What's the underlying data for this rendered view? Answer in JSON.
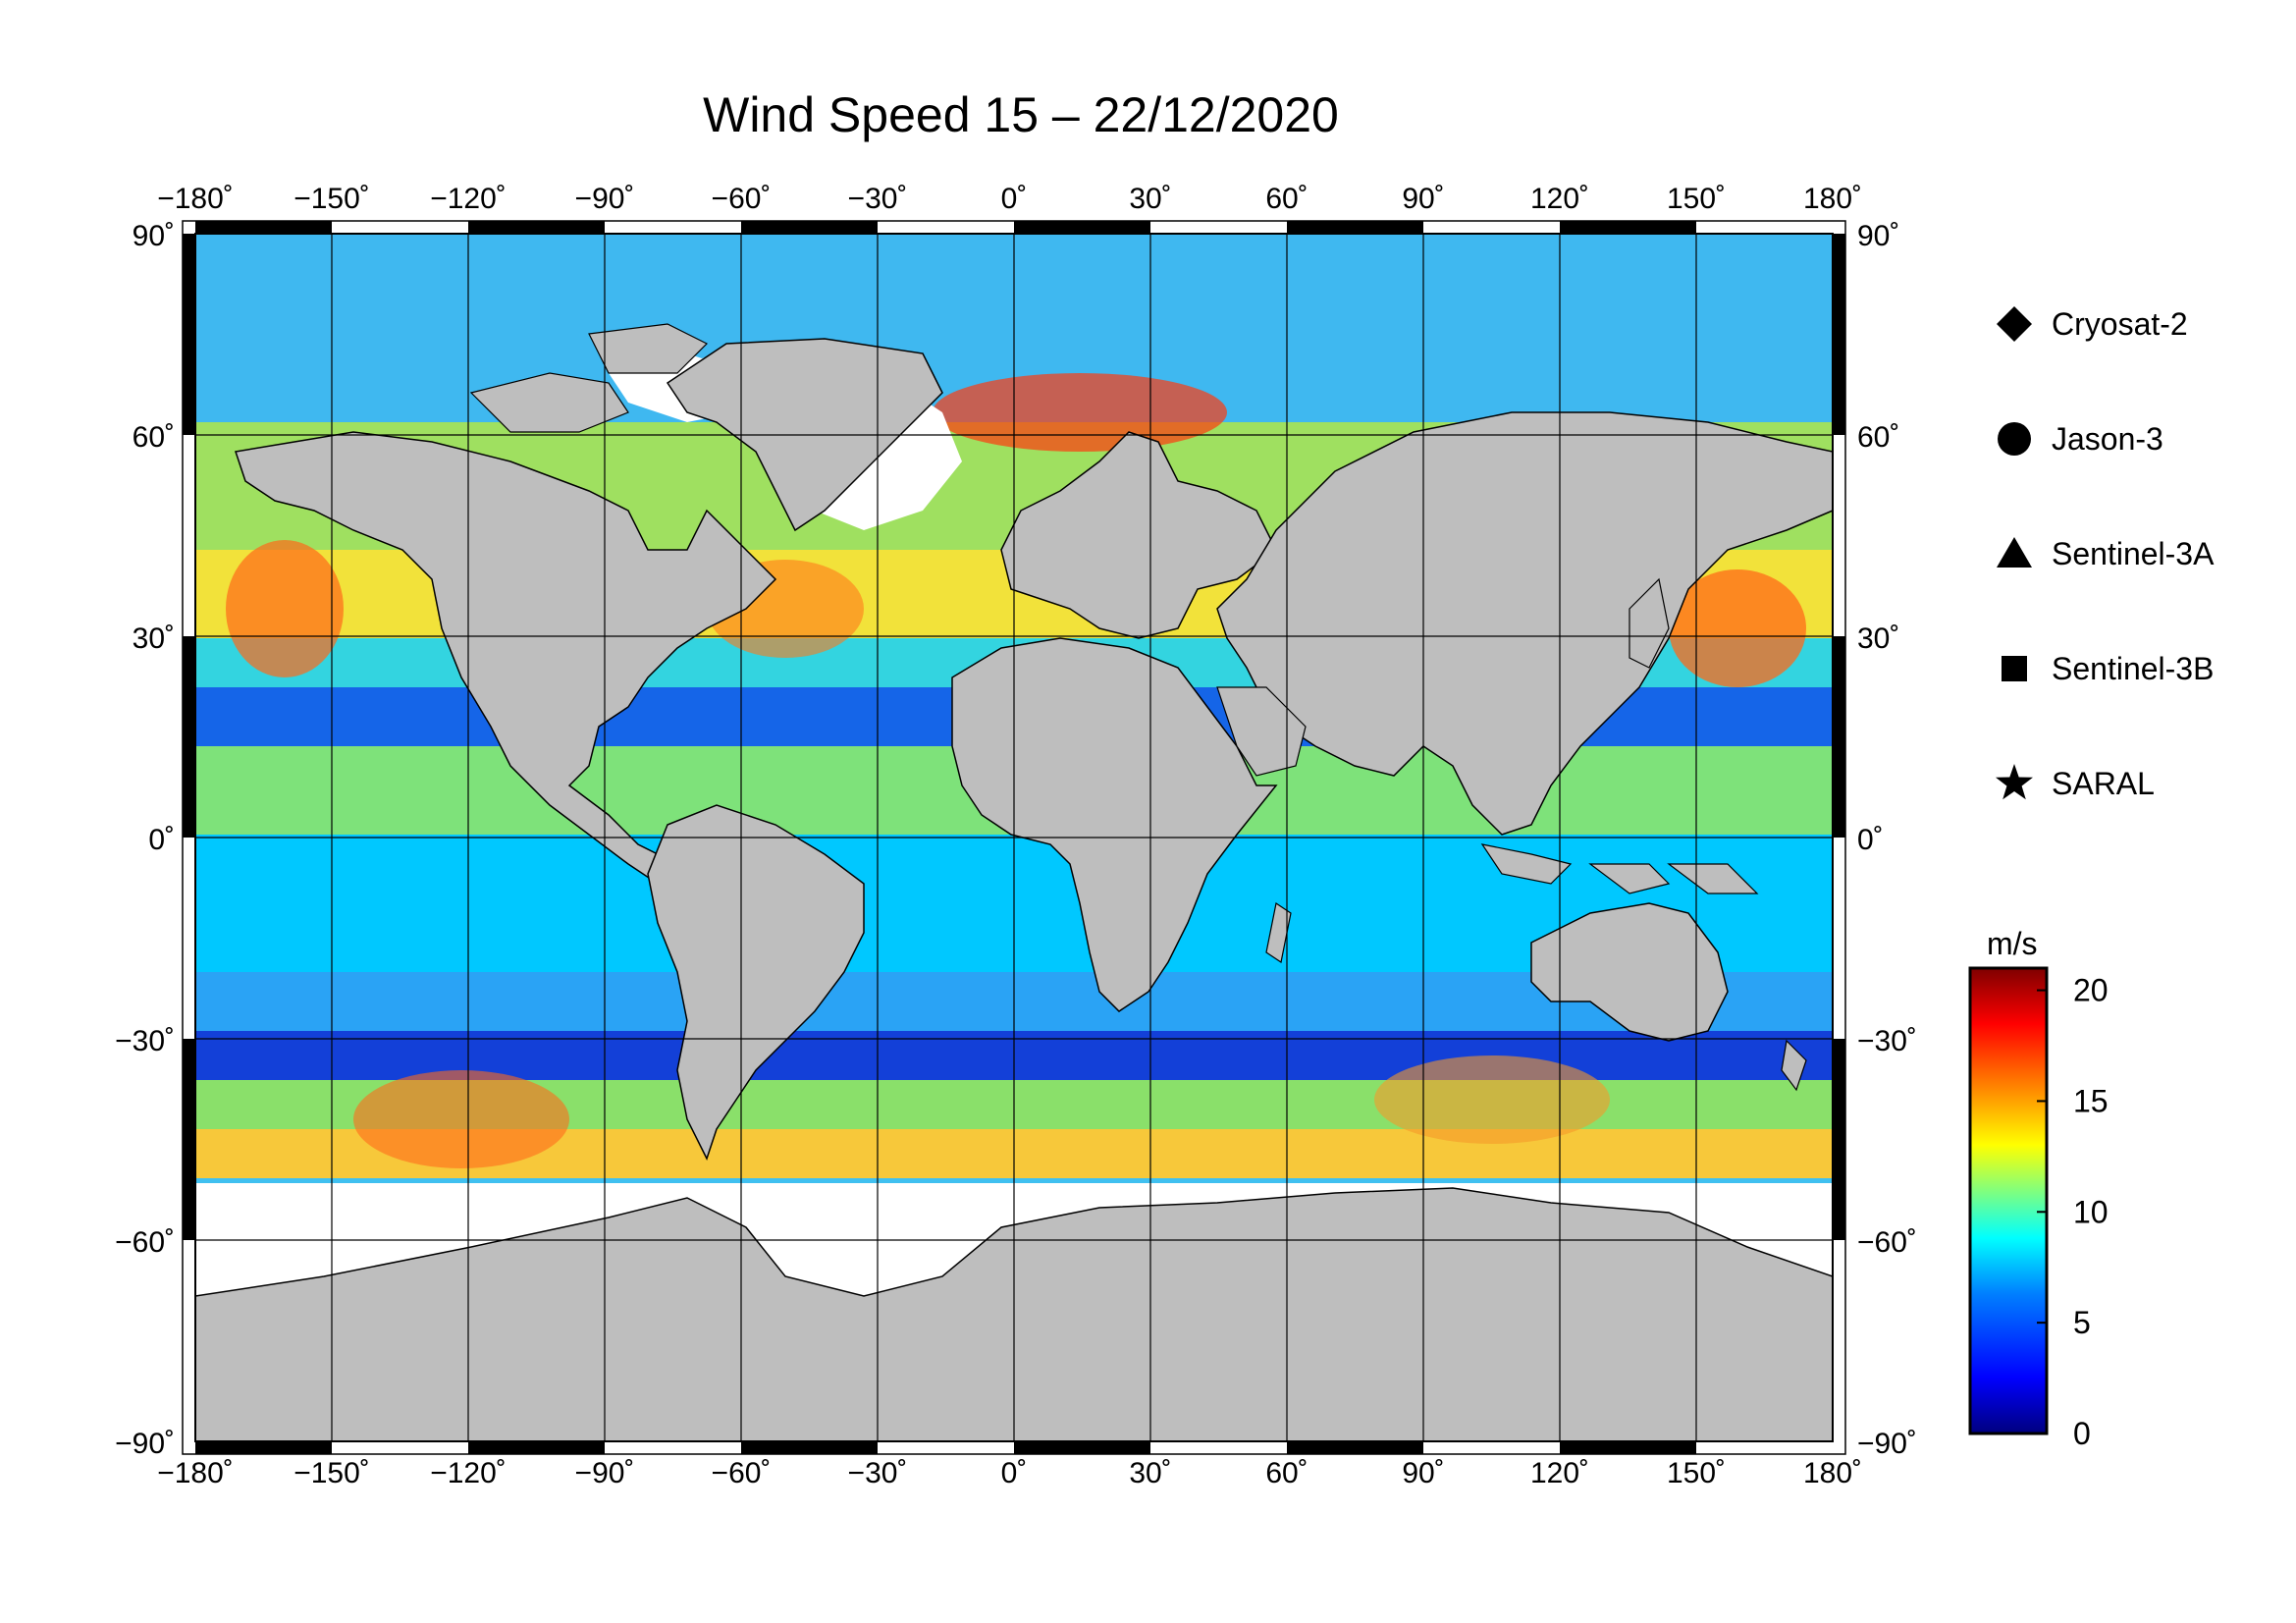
{
  "title": "Wind Speed 15 – 22/12/2020",
  "map": {
    "lon_ticks": [
      "−180˚",
      "−150˚",
      "−120˚",
      "−90˚",
      "−60˚",
      "−30˚",
      "0˚",
      "30˚",
      "60˚",
      "90˚",
      "120˚",
      "150˚",
      "180˚"
    ],
    "lat_ticks_left": [
      "90˚",
      "60˚",
      "30˚",
      "0˚",
      "−30˚",
      "−60˚",
      "−90˚"
    ],
    "lat_ticks_right": [
      "90˚",
      "60˚",
      "30˚",
      "0˚",
      "−30˚",
      "−60˚",
      "−90˚"
    ],
    "lon_values": [
      -180,
      -150,
      -120,
      -90,
      -60,
      -30,
      0,
      30,
      60,
      90,
      120,
      150,
      180
    ],
    "lat_values": [
      90,
      60,
      30,
      0,
      -30,
      -60,
      -90
    ],
    "land_color": "#bebebe",
    "ice_color": "#ffffff"
  },
  "legend": {
    "items": [
      {
        "label": "Cryosat-2",
        "marker": "diamond"
      },
      {
        "label": "Jason-3",
        "marker": "circle"
      },
      {
        "label": "Sentinel-3A",
        "marker": "triangle"
      },
      {
        "label": "Sentinel-3B",
        "marker": "square"
      },
      {
        "label": "SARAL",
        "marker": "star"
      }
    ]
  },
  "colorbar": {
    "unit": "m/s",
    "ticks": [
      "20",
      "15",
      "10",
      "5",
      "0"
    ],
    "tick_values": [
      20,
      15,
      10,
      5,
      0
    ],
    "range": [
      0,
      21
    ],
    "colors": [
      "#00007f",
      "#0000ff",
      "#007fff",
      "#00ffff",
      "#7fff7f",
      "#ffff00",
      "#ff7f00",
      "#ff0000",
      "#7f0000"
    ]
  }
}
